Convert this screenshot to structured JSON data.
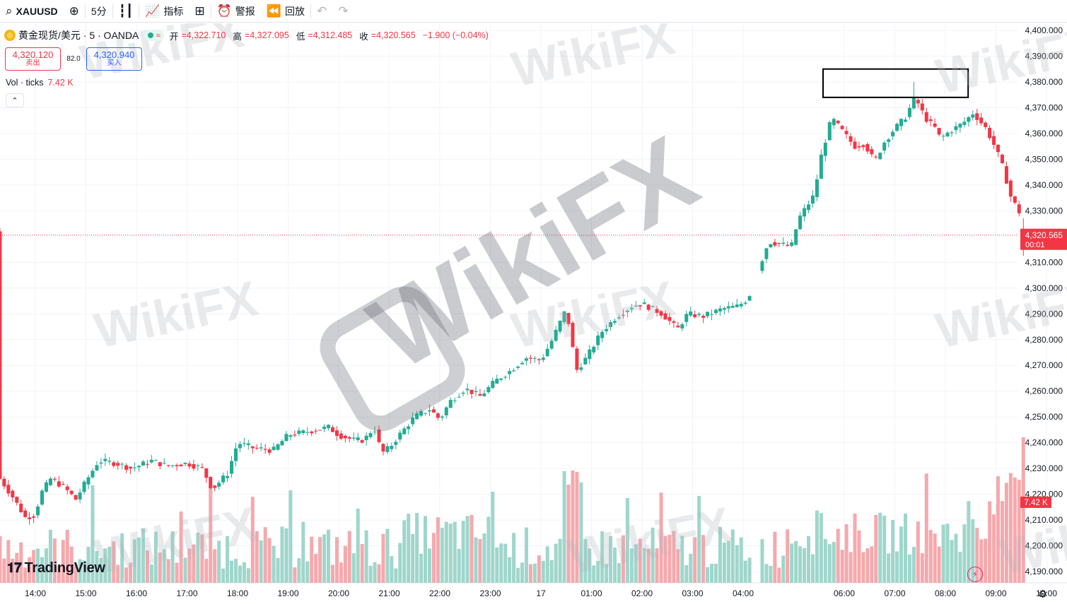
{
  "toolbar": {
    "symbol": "XAUUSD",
    "interval": "5分",
    "indicators_label": "指标",
    "alert_label": "警报",
    "replay_label": "回放"
  },
  "legend": {
    "title": "黄金现货/美元 · 5 · OANDA",
    "status_glyph": "≈",
    "open_key": "开",
    "open": "=4,322.710",
    "high_key": "高",
    "high": "=4,327.095",
    "low_key": "低",
    "low": "=4,312.485",
    "close_key": "收",
    "close": "=4,320.565",
    "change": "−1.900 (−0.04%)"
  },
  "quote": {
    "sell_price": "4,320.120",
    "sell_label": "卖出",
    "spread": "82.0",
    "buy_price": "4,320.940",
    "buy_label": "买入"
  },
  "volume_legend": {
    "label": "Vol · ticks",
    "value": "7.42 K"
  },
  "brand": {
    "logo_text": "TradingView"
  },
  "watermark_text": "WikiFX",
  "colors": {
    "up": "#22ab94",
    "down": "#f23645",
    "vol_up": "#9fd6cb",
    "vol_down": "#f5a9ad"
  },
  "chart_data": {
    "type": "candlestick",
    "y_axis_ticks": [
      4400,
      4390,
      4380,
      4370,
      4360,
      4350,
      4340,
      4330,
      4320,
      4310,
      4300,
      4290,
      4280,
      4270,
      4260,
      4250,
      4240,
      4230,
      4220,
      4210,
      4200,
      4190
    ],
    "y_axis_labels": [
      "4,400.000",
      "4,390.000",
      "4,380.000",
      "4,370.000",
      "4,360.000",
      "4,350.000",
      "4,340.000",
      "4,330.000",
      "4,320.000",
      "4,310.000",
      "4,300.000",
      "4,290.000",
      "4,280.000",
      "4,270.000",
      "4,260.000",
      "4,250.000",
      "4,240.000",
      "4,230.000",
      "4,220.000",
      "4,210.000",
      "4,200.000",
      "4,190.000"
    ],
    "x_axis_labels": [
      "14:00",
      "15:00",
      "16:00",
      "17:00",
      "18:00",
      "19:00",
      "20:00",
      "21:00",
      "22:00",
      "23:00",
      "17",
      "01:00",
      "02:00",
      "03:00",
      "04:00",
      "06:00",
      "07:00",
      "08:00",
      "09:00",
      "10:00"
    ],
    "last_price_label": "4,320.565",
    "last_price": 4320.565,
    "countdown": "00:01",
    "volume_last_label": "7.42 K",
    "ylim": [
      4186,
      4402
    ],
    "key_prices": {
      "start": 4226,
      "h1600": 4234,
      "h1900": 4245,
      "h2100_low": 4238,
      "h2200": 4262,
      "h0000": 4288,
      "h0300": 4293,
      "h0400": 4298,
      "h0530": 4315,
      "h0600": 4365,
      "peak": 4380,
      "h0900": 4365,
      "end": 4320.565
    },
    "highlight_box": {
      "price_top": 4385,
      "price_bottom": 4374,
      "time_from": "06:00",
      "time_to": "08:30"
    }
  }
}
